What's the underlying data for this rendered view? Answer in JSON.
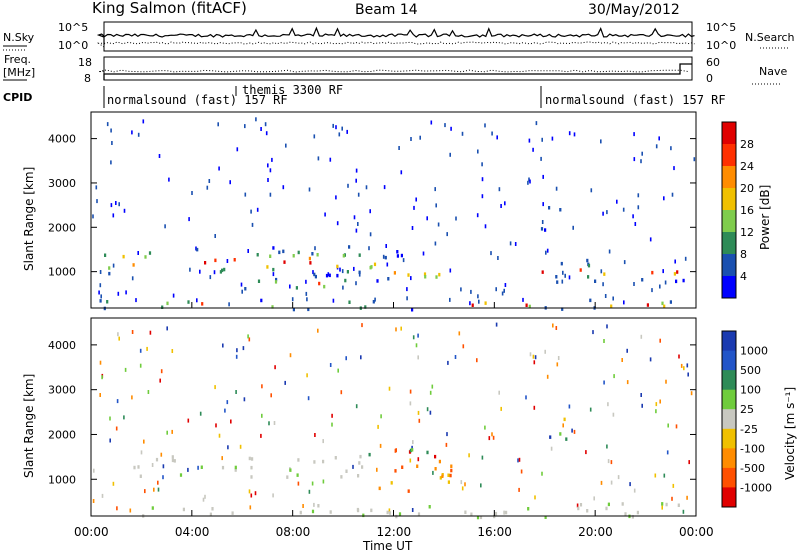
{
  "header": {
    "station": "King Salmon (fitACF)",
    "beam": "Beam 14",
    "date": "30/May/2012"
  },
  "top_panels": {
    "nsky_label": "N.Sky",
    "nsearch_label": "N.Search",
    "nsky_ticks": [
      "10^5",
      "10^0"
    ],
    "freq_label": "Freq.",
    "freq_unit": "[MHz]",
    "freq_ticks": [
      "18",
      "8"
    ],
    "nave_label": "Nave",
    "nave_ticks": [
      "60",
      "0"
    ],
    "cpid_label": "CPID",
    "cpid_segments": [
      "normalsound (fast) 157 RF",
      "themis 3300 RF",
      "normalsound (fast) 157 RF"
    ]
  },
  "chart_data": [
    {
      "type": "heatmap",
      "name": "power",
      "ylabel": "Slant Range [km]",
      "yticks": [
        1000,
        2000,
        3000,
        4000
      ],
      "ylim": [
        180,
        4600
      ],
      "colorbar_label": "Power [dB]",
      "colorbar_ticks": [
        "4",
        "8",
        "12",
        "16",
        "20",
        "24",
        "28"
      ],
      "colors": [
        "#0000ff",
        "#1a50b0",
        "#2e8b57",
        "#7fcc4c",
        "#f0c000",
        "#ff8c00",
        "#ff3000",
        "#e00000"
      ],
      "echo_bands": [
        {
          "t0": 0.5,
          "t1": 11.2,
          "r0": 900,
          "r1": 1600
        },
        {
          "t0": 6.0,
          "t1": 10.5,
          "r0": 600,
          "r1": 900
        },
        {
          "t0": 11.0,
          "t1": 13.9,
          "r0": 700,
          "r1": 1500
        },
        {
          "t0": 17.8,
          "t1": 23.8,
          "r0": 800,
          "r1": 1300
        },
        {
          "t0": 17.8,
          "t1": 19.0,
          "r0": 1900,
          "r1": 2500
        },
        {
          "t0": 0.3,
          "t1": 23.8,
          "r0": 180,
          "r1": 400
        }
      ]
    },
    {
      "type": "heatmap",
      "name": "velocity",
      "ylabel": "Slant Range [km]",
      "yticks": [
        1000,
        2000,
        3000,
        4000
      ],
      "ylim": [
        180,
        4600
      ],
      "xlabel": "Time UT",
      "xticks": [
        "00:00",
        "04:00",
        "08:00",
        "12:00",
        "16:00",
        "20:00",
        "00:00"
      ],
      "xlim": [
        0,
        24
      ],
      "colorbar_label": "Velocity [m s⁻¹]",
      "colorbar_ticks": [
        "1000",
        "500",
        "100",
        "25",
        "-25",
        "-100",
        "-500",
        "-1000"
      ],
      "colors": [
        "#1a3ab0",
        "#2255c8",
        "#2e8b57",
        "#6fcc3c",
        "#c8c8c0",
        "#f0c000",
        "#ff8c00",
        "#ff5000",
        "#e00000"
      ],
      "echo_bands": [
        {
          "t0": 0.5,
          "t1": 11.0,
          "r0": 1050,
          "r1": 1550,
          "v": "ground"
        },
        {
          "t0": 11.0,
          "t1": 14.3,
          "r0": 750,
          "r1": 1700,
          "v": "mixed"
        },
        {
          "t0": 12.6,
          "t1": 14.3,
          "r0": 1050,
          "r1": 1550,
          "v": "negative"
        },
        {
          "t0": 17.8,
          "t1": 19.0,
          "r0": 1900,
          "r1": 2500,
          "v": "mixed"
        },
        {
          "t0": 0.3,
          "t1": 23.8,
          "r0": 180,
          "r1": 500,
          "v": "ground"
        }
      ]
    }
  ]
}
